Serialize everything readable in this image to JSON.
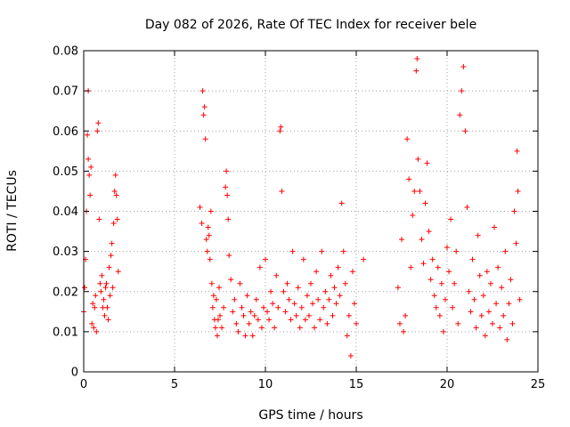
{
  "chart_data": {
    "type": "scatter",
    "title": "Day 082 of 2026, Rate Of TEC Index for receiver bele",
    "xlabel": "GPS time / hours",
    "ylabel": "ROTI / TECUs",
    "xlim": [
      0,
      25
    ],
    "ylim": [
      0,
      0.08
    ],
    "x_ticks": [
      0,
      5,
      10,
      15,
      20,
      25
    ],
    "y_ticks": [
      0,
      0.01,
      0.02,
      0.03,
      0.04,
      0.05,
      0.06,
      0.07,
      0.08
    ],
    "grid": true,
    "marker": "+",
    "color": "#ff0000",
    "series": [
      {
        "points": [
          [
            0.0,
            0.015
          ],
          [
            0.05,
            0.021
          ],
          [
            0.1,
            0.028
          ],
          [
            0.15,
            0.04
          ],
          [
            0.2,
            0.059
          ],
          [
            0.25,
            0.07
          ],
          [
            0.25,
            0.053
          ],
          [
            0.3,
            0.049
          ],
          [
            0.35,
            0.044
          ],
          [
            0.4,
            0.051
          ],
          [
            0.45,
            0.012
          ],
          [
            0.5,
            0.017
          ],
          [
            0.55,
            0.011
          ],
          [
            0.6,
            0.016
          ],
          [
            0.65,
            0.019
          ],
          [
            0.7,
            0.01
          ],
          [
            0.75,
            0.06
          ],
          [
            0.8,
            0.062
          ],
          [
            0.85,
            0.038
          ],
          [
            0.9,
            0.022
          ],
          [
            0.95,
            0.02
          ],
          [
            1.0,
            0.024
          ],
          [
            1.05,
            0.016
          ],
          [
            1.1,
            0.018
          ],
          [
            1.15,
            0.014
          ],
          [
            1.2,
            0.021
          ],
          [
            1.25,
            0.022
          ],
          [
            1.3,
            0.016
          ],
          [
            1.35,
            0.013
          ],
          [
            1.4,
            0.026
          ],
          [
            1.45,
            0.019
          ],
          [
            1.5,
            0.029
          ],
          [
            1.55,
            0.032
          ],
          [
            1.6,
            0.021
          ],
          [
            1.65,
            0.037
          ],
          [
            1.7,
            0.045
          ],
          [
            1.75,
            0.049
          ],
          [
            1.8,
            0.044
          ],
          [
            1.85,
            0.038
          ],
          [
            1.9,
            0.025
          ],
          [
            6.4,
            0.041
          ],
          [
            6.5,
            0.037
          ],
          [
            6.55,
            0.07
          ],
          [
            6.6,
            0.064
          ],
          [
            6.65,
            0.066
          ],
          [
            6.7,
            0.058
          ],
          [
            6.75,
            0.033
          ],
          [
            6.8,
            0.03
          ],
          [
            6.85,
            0.036
          ],
          [
            6.9,
            0.034
          ],
          [
            6.95,
            0.028
          ],
          [
            7.0,
            0.04
          ],
          [
            7.05,
            0.022
          ],
          [
            7.1,
            0.016
          ],
          [
            7.15,
            0.019
          ],
          [
            7.2,
            0.013
          ],
          [
            7.25,
            0.011
          ],
          [
            7.3,
            0.018
          ],
          [
            7.35,
            0.009
          ],
          [
            7.4,
            0.013
          ],
          [
            7.45,
            0.021
          ],
          [
            7.5,
            0.014
          ],
          [
            7.6,
            0.011
          ],
          [
            7.7,
            0.016
          ],
          [
            7.8,
            0.046
          ],
          [
            7.85,
            0.05
          ],
          [
            7.9,
            0.044
          ],
          [
            7.95,
            0.038
          ],
          [
            8.0,
            0.029
          ],
          [
            8.1,
            0.023
          ],
          [
            8.2,
            0.015
          ],
          [
            8.3,
            0.018
          ],
          [
            8.4,
            0.012
          ],
          [
            8.5,
            0.01
          ],
          [
            8.6,
            0.022
          ],
          [
            8.7,
            0.016
          ],
          [
            8.8,
            0.014
          ],
          [
            8.9,
            0.009
          ],
          [
            9.0,
            0.019
          ],
          [
            9.1,
            0.012
          ],
          [
            9.2,
            0.015
          ],
          [
            9.3,
            0.009
          ],
          [
            9.4,
            0.014
          ],
          [
            9.5,
            0.018
          ],
          [
            9.6,
            0.013
          ],
          [
            9.7,
            0.026
          ],
          [
            9.8,
            0.011
          ],
          [
            9.9,
            0.016
          ],
          [
            10.0,
            0.028
          ],
          [
            10.1,
            0.015
          ],
          [
            10.2,
            0.013
          ],
          [
            10.3,
            0.02
          ],
          [
            10.4,
            0.017
          ],
          [
            10.5,
            0.011
          ],
          [
            10.6,
            0.024
          ],
          [
            10.7,
            0.016
          ],
          [
            10.8,
            0.06
          ],
          [
            10.85,
            0.061
          ],
          [
            10.9,
            0.045
          ],
          [
            11.0,
            0.02
          ],
          [
            11.1,
            0.015
          ],
          [
            11.2,
            0.022
          ],
          [
            11.3,
            0.018
          ],
          [
            11.4,
            0.013
          ],
          [
            11.5,
            0.03
          ],
          [
            11.6,
            0.017
          ],
          [
            11.7,
            0.014
          ],
          [
            11.8,
            0.021
          ],
          [
            11.9,
            0.011
          ],
          [
            12.0,
            0.016
          ],
          [
            12.1,
            0.028
          ],
          [
            12.2,
            0.013
          ],
          [
            12.3,
            0.019
          ],
          [
            12.4,
            0.014
          ],
          [
            12.5,
            0.022
          ],
          [
            12.6,
            0.017
          ],
          [
            12.7,
            0.011
          ],
          [
            12.8,
            0.025
          ],
          [
            12.9,
            0.018
          ],
          [
            13.0,
            0.013
          ],
          [
            13.1,
            0.03
          ],
          [
            13.2,
            0.016
          ],
          [
            13.3,
            0.02
          ],
          [
            13.4,
            0.012
          ],
          [
            13.5,
            0.018
          ],
          [
            13.6,
            0.024
          ],
          [
            13.7,
            0.014
          ],
          [
            13.8,
            0.021
          ],
          [
            13.9,
            0.017
          ],
          [
            14.0,
            0.026
          ],
          [
            14.1,
            0.019
          ],
          [
            14.2,
            0.042
          ],
          [
            14.3,
            0.03
          ],
          [
            14.4,
            0.022
          ],
          [
            14.5,
            0.009
          ],
          [
            14.6,
            0.014
          ],
          [
            14.7,
            0.004
          ],
          [
            14.8,
            0.025
          ],
          [
            14.9,
            0.017
          ],
          [
            15.0,
            0.012
          ],
          [
            15.4,
            0.028
          ],
          [
            17.3,
            0.021
          ],
          [
            17.4,
            0.012
          ],
          [
            17.5,
            0.033
          ],
          [
            17.6,
            0.01
          ],
          [
            17.7,
            0.014
          ],
          [
            17.8,
            0.058
          ],
          [
            17.9,
            0.048
          ],
          [
            18.0,
            0.026
          ],
          [
            18.1,
            0.039
          ],
          [
            18.2,
            0.045
          ],
          [
            18.3,
            0.075
          ],
          [
            18.35,
            0.078
          ],
          [
            18.4,
            0.053
          ],
          [
            18.5,
            0.045
          ],
          [
            18.6,
            0.033
          ],
          [
            18.7,
            0.027
          ],
          [
            18.8,
            0.042
          ],
          [
            18.9,
            0.052
          ],
          [
            19.0,
            0.035
          ],
          [
            19.1,
            0.023
          ],
          [
            19.2,
            0.028
          ],
          [
            19.3,
            0.019
          ],
          [
            19.4,
            0.016
          ],
          [
            19.5,
            0.026
          ],
          [
            19.6,
            0.014
          ],
          [
            19.7,
            0.022
          ],
          [
            19.8,
            0.01
          ],
          [
            19.9,
            0.018
          ],
          [
            20.0,
            0.031
          ],
          [
            20.1,
            0.025
          ],
          [
            20.2,
            0.038
          ],
          [
            20.3,
            0.016
          ],
          [
            20.4,
            0.022
          ],
          [
            20.5,
            0.03
          ],
          [
            20.6,
            0.012
          ],
          [
            20.7,
            0.064
          ],
          [
            20.8,
            0.07
          ],
          [
            20.9,
            0.076
          ],
          [
            21.0,
            0.06
          ],
          [
            21.1,
            0.041
          ],
          [
            21.2,
            0.02
          ],
          [
            21.3,
            0.015
          ],
          [
            21.4,
            0.028
          ],
          [
            21.5,
            0.018
          ],
          [
            21.6,
            0.011
          ],
          [
            21.7,
            0.034
          ],
          [
            21.8,
            0.024
          ],
          [
            21.9,
            0.014
          ],
          [
            22.0,
            0.019
          ],
          [
            22.1,
            0.009
          ],
          [
            22.2,
            0.025
          ],
          [
            22.3,
            0.015
          ],
          [
            22.4,
            0.022
          ],
          [
            22.5,
            0.012
          ],
          [
            22.6,
            0.036
          ],
          [
            22.7,
            0.017
          ],
          [
            22.8,
            0.026
          ],
          [
            22.9,
            0.011
          ],
          [
            23.0,
            0.021
          ],
          [
            23.1,
            0.014
          ],
          [
            23.2,
            0.03
          ],
          [
            23.3,
            0.008
          ],
          [
            23.4,
            0.017
          ],
          [
            23.5,
            0.023
          ],
          [
            23.6,
            0.012
          ],
          [
            23.7,
            0.04
          ],
          [
            23.8,
            0.032
          ],
          [
            23.85,
            0.055
          ],
          [
            23.9,
            0.045
          ],
          [
            24.0,
            0.018
          ]
        ]
      }
    ]
  }
}
